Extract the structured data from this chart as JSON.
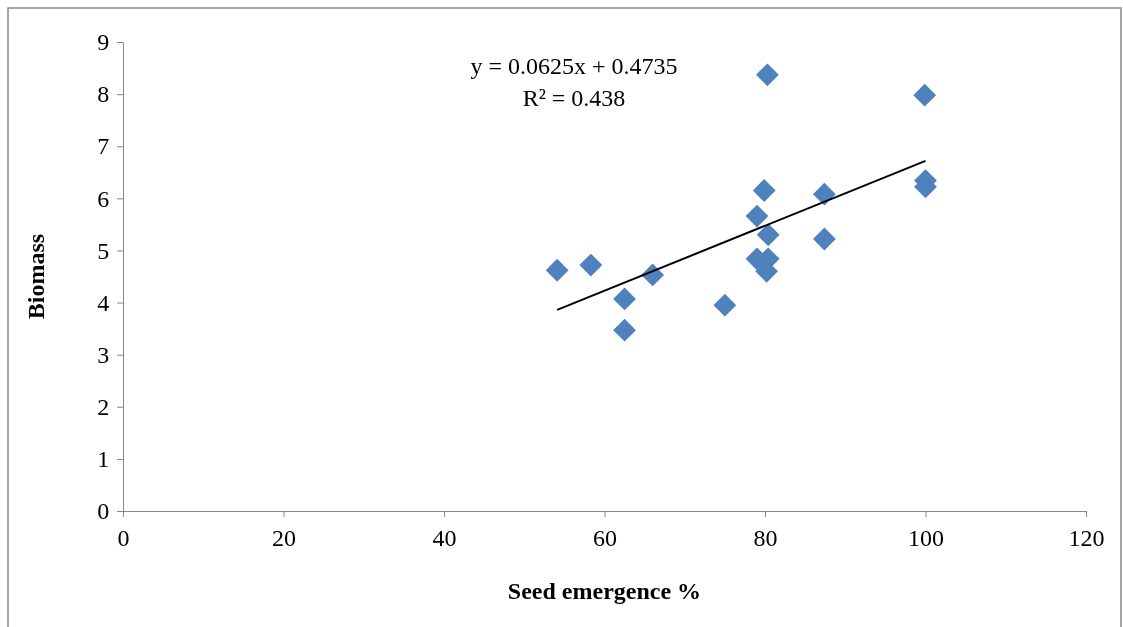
{
  "chart_data": {
    "type": "scatter",
    "xlabel": "Seed emergence %",
    "ylabel": "Biomass",
    "xlim": [
      0,
      120
    ],
    "xticks": [
      0,
      20,
      40,
      60,
      80,
      100,
      120
    ],
    "ylim": [
      0,
      9
    ],
    "yticks": [
      0,
      1,
      2,
      3,
      4,
      5,
      6,
      7,
      8,
      9
    ],
    "grid": false,
    "marker": "diamond",
    "annotations": [
      "y = 0.0625x + 0.4735",
      "R² = 0.438"
    ],
    "series": [
      {
        "color": "#4f81bd",
        "x": [
          54.1,
          58.3,
          62.5,
          62.5,
          66.0,
          75.0,
          79.0,
          79.0,
          79.9,
          80.3,
          80.4,
          80.4,
          80.2,
          87.4,
          87.4,
          99.9,
          100,
          100
        ],
        "values": [
          4.62,
          4.72,
          4.07,
          3.47,
          4.53,
          3.95,
          5.66,
          4.84,
          6.15,
          8.37,
          5.3,
          4.84,
          4.6,
          6.08,
          5.22,
          7.98,
          6.34,
          6.22
        ]
      },
      {
        "type": "line",
        "color": "#000000",
        "marker": "none",
        "x": [
          54.1,
          100
        ],
        "values": [
          3.86,
          6.72
        ]
      }
    ]
  }
}
